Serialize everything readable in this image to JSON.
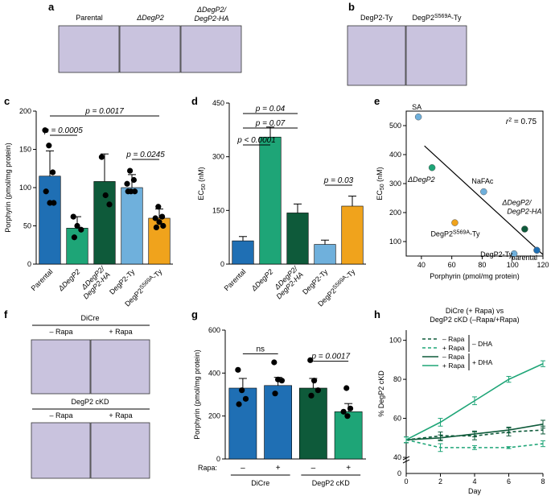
{
  "colors": {
    "parental": "#1f6fb4",
    "ddegp2": "#1ea577",
    "comp": "#0e5a3a",
    "ty": "#6fb0dc",
    "s569a": "#f0a31c",
    "micro": "#c9c3de"
  },
  "panels": {
    "a": {
      "letter": "a",
      "labels": [
        "Parental",
        "ΔDegP2",
        "ΔDegP2/\nDegP2-HA"
      ]
    },
    "b": {
      "letter": "b",
      "labels": [
        "DegP2-Ty",
        "DegP2S569A-Ty"
      ]
    },
    "c": {
      "letter": "c"
    },
    "d": {
      "letter": "d"
    },
    "e": {
      "letter": "e"
    },
    "f": {
      "letter": "f",
      "group1": "DiCre",
      "group2": "DegP2 cKD",
      "minus": "– Rapa",
      "plus": "+ Rapa"
    },
    "g": {
      "letter": "g"
    },
    "h": {
      "letter": "h"
    }
  },
  "chart_data": [
    {
      "id": "c",
      "type": "bar",
      "ylabel": "Porphyrin (pmol/mg protein)",
      "ylim": [
        0,
        200
      ],
      "yticks": [
        0,
        50,
        100,
        150,
        200
      ],
      "categories": [
        "Parental",
        "ΔDegP2",
        "ΔDegP2/DegP2-HA",
        "DegP2-Ty",
        "DegP2S569A-Ty"
      ],
      "values": [
        115,
        47,
        108,
        100,
        60
      ],
      "errors": [
        33,
        15,
        36,
        17,
        12
      ],
      "points": [
        [
          175,
          155,
          120,
          95,
          80,
          80
        ],
        [
          62,
          50,
          45,
          35
        ],
        [
          140,
          90,
          78
        ],
        [
          122,
          110,
          105,
          95,
          95,
          95
        ],
        [
          75,
          62,
          60,
          55,
          50,
          48
        ]
      ],
      "pvalues": [
        {
          "text": "p = 0.0017",
          "from": 0,
          "to": 4
        },
        {
          "text": "p = 0.0005",
          "from": 0,
          "to": 1
        },
        {
          "text": "p = 0.0245",
          "from": 3,
          "to": 4
        }
      ]
    },
    {
      "id": "d",
      "type": "bar",
      "ylabel": "EC50 (nM)",
      "ylim": [
        0,
        450
      ],
      "yticks": [
        0,
        150,
        300,
        450
      ],
      "categories": [
        "Parental",
        "ΔDegP2",
        "ΔDegP2/DegP2-HA",
        "DegP2-Ty",
        "DegP2S569A-Ty"
      ],
      "values": [
        65,
        355,
        143,
        55,
        162
      ],
      "errors": [
        12,
        28,
        25,
        12,
        28
      ],
      "pvalues": [
        {
          "text": "p = 0.04",
          "from": 0,
          "to": 2
        },
        {
          "text": "p = 0.07",
          "from": 0,
          "to": 2
        },
        {
          "text": "p < 0.0001",
          "from": 0,
          "to": 1
        },
        {
          "text": "p = 0.03",
          "from": 3,
          "to": 4
        }
      ]
    },
    {
      "id": "e",
      "type": "scatter",
      "xlabel": "Porphyrin (pmol/mg protein)",
      "ylabel": "EC50 (nM)",
      "xlim": [
        30,
        120
      ],
      "ylim": [
        50,
        550
      ],
      "xticks": [
        40,
        60,
        80,
        100,
        120
      ],
      "yticks": [
        100,
        200,
        300,
        400,
        500
      ],
      "r2": "r2 = 0.75",
      "points": [
        {
          "label": "SA",
          "x": 38,
          "y": 530,
          "color": "ty"
        },
        {
          "label": "ΔDegP2",
          "x": 47,
          "y": 355,
          "color": "ddegp2"
        },
        {
          "label": "NaFAc",
          "x": 81,
          "y": 272,
          "color": "ty"
        },
        {
          "label": "DegP2S569A-Ty",
          "x": 62,
          "y": 165,
          "color": "s569a"
        },
        {
          "label": "ΔDegP2/DegP2-HA",
          "x": 108,
          "y": 143,
          "color": "comp"
        },
        {
          "label": "DegP2-Ty",
          "x": 101,
          "y": 58,
          "color": "ty"
        },
        {
          "label": "parental",
          "x": 116,
          "y": 70,
          "color": "parental"
        }
      ],
      "fit": {
        "x": [
          42,
          120
        ],
        "y": [
          430,
          55
        ]
      }
    },
    {
      "id": "g",
      "type": "bar",
      "ylabel": "Porphyrin (pmol/mg protein)",
      "ylim": [
        0,
        600
      ],
      "yticks": [
        0,
        200,
        400,
        600
      ],
      "rapa_label": "Rapa:",
      "groups": [
        "DiCre",
        "DegP2 cKD"
      ],
      "conditions": [
        "–",
        "+",
        "–",
        "+"
      ],
      "values": [
        330,
        342,
        330,
        220
      ],
      "errors": [
        45,
        38,
        45,
        38
      ],
      "points": [
        [
          415,
          320,
          280,
          255
        ],
        [
          450,
          370,
          365,
          305
        ],
        [
          460,
          365,
          320,
          295
        ],
        [
          330,
          235,
          220,
          200
        ]
      ],
      "pvalues": [
        {
          "text": "ns",
          "from": 0,
          "to": 1
        },
        {
          "text": "p = 0.0017",
          "from": 2,
          "to": 3
        }
      ]
    },
    {
      "id": "h",
      "type": "line",
      "title": "DiCre (+ Rapa) vs\nDegP2 cKD (–Rapa/+Rapa)",
      "xlabel": "Day",
      "ylabel": "% DegP2 cKD",
      "xlim": [
        0,
        8
      ],
      "ylim": [
        40,
        100
      ],
      "xticks": [
        0,
        2,
        4,
        6,
        8
      ],
      "yticks": [
        40,
        60,
        80,
        100
      ],
      "x": [
        0,
        2,
        4,
        6,
        8
      ],
      "series": [
        {
          "name": "– Rapa",
          "group": "– DHA",
          "values": [
            49,
            51,
            51,
            53,
            54
          ],
          "errors": [
            1.5,
            2,
            2,
            2,
            2
          ],
          "dashed": true,
          "color": "comp"
        },
        {
          "name": "+ Rapa",
          "group": "– DHA",
          "values": [
            49,
            45,
            45,
            45,
            47
          ],
          "errors": [
            1.5,
            2,
            1,
            0.5,
            1.5
          ],
          "dashed": true,
          "color": "ddegp2"
        },
        {
          "name": "– Rapa",
          "group": "+ DHA",
          "values": [
            49,
            50,
            52,
            54,
            57
          ],
          "errors": [
            1.5,
            1.5,
            1.5,
            1.5,
            2
          ],
          "dashed": false,
          "color": "comp"
        },
        {
          "name": "+ Rapa",
          "group": "+ DHA",
          "values": [
            49,
            58,
            69,
            80,
            88
          ],
          "errors": [
            1.5,
            2,
            2,
            1.5,
            1.5
          ],
          "dashed": false,
          "color": "ddegp2"
        }
      ],
      "legend_groups": [
        "– DHA",
        "+ DHA"
      ]
    }
  ]
}
